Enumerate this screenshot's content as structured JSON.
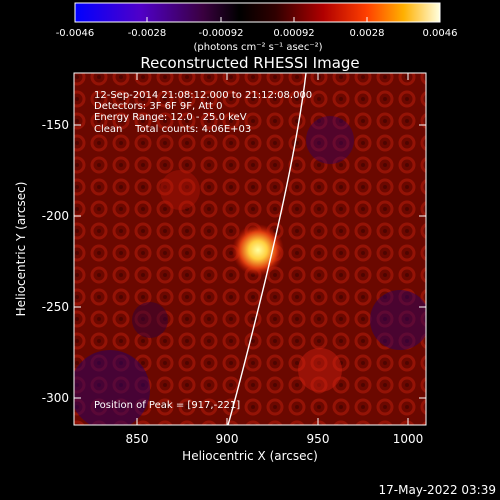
{
  "colorbar": {
    "ticks": [
      "-0.0046",
      "-0.0028",
      "-0.00092",
      "0.00092",
      "0.0028",
      "0.0046"
    ],
    "unit_label": "(photons cm⁻² s⁻¹ asec⁻²)"
  },
  "title": "Reconstructed RHESSI Image",
  "info_lines": [
    "12-Sep-2014 21:08:12.000 to 21:12:08.000",
    "Detectors: 3F 6F 9F, Att 0",
    "Energy Range: 12.0 - 25.0 keV",
    "Clean    Total counts: 4.06E+03"
  ],
  "peak_text": "Position of Peak = [917,-221]",
  "xaxis": {
    "label": "Heliocentric X (arcsec)",
    "ticks": [
      "850",
      "900",
      "950",
      "1000"
    ]
  },
  "yaxis": {
    "label": "Heliocentric Y (arcsec)",
    "ticks": [
      "-150",
      "-200",
      "-250",
      "-300"
    ]
  },
  "timestamp": "17-May-2022 03:39",
  "colors": {
    "background": "#000000",
    "limb": "#ffffff",
    "peak": "#ffff80"
  }
}
